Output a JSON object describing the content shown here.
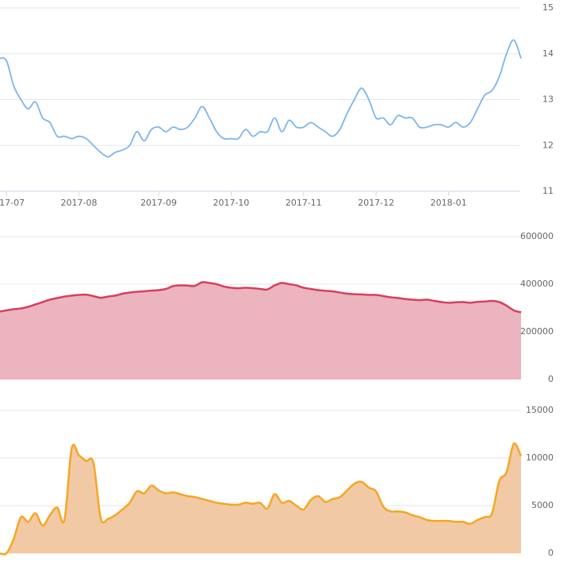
{
  "chart_data": [
    {
      "type": "line",
      "color": "#7cb5ec",
      "categories": [
        null,
        "2017-07",
        null,
        null,
        null,
        null,
        null,
        null,
        null,
        null,
        null,
        "2017-08",
        null,
        null,
        null,
        null,
        null,
        null,
        null,
        null,
        null,
        null,
        "2017-09",
        null,
        null,
        null,
        null,
        null,
        null,
        null,
        null,
        null,
        "2017-10",
        null,
        null,
        null,
        null,
        null,
        null,
        null,
        null,
        null,
        "2017-11",
        null,
        null,
        null,
        null,
        null,
        null,
        null,
        null,
        null,
        "2017-12",
        null,
        null,
        null,
        null,
        null,
        null,
        null,
        null,
        null,
        "2018-01",
        null,
        null,
        null,
        null,
        null,
        null,
        null,
        null,
        null,
        null
      ],
      "values": [
        13.9,
        13.85,
        13.3,
        13.0,
        12.8,
        12.95,
        12.6,
        12.5,
        12.2,
        12.2,
        12.15,
        12.2,
        12.15,
        12.0,
        11.85,
        11.75,
        11.85,
        11.9,
        12.0,
        12.3,
        12.1,
        12.35,
        12.4,
        12.3,
        12.4,
        12.35,
        12.4,
        12.6,
        12.85,
        12.6,
        12.3,
        12.15,
        12.15,
        12.15,
        12.35,
        12.2,
        12.3,
        12.3,
        12.6,
        12.3,
        12.55,
        12.4,
        12.4,
        12.5,
        12.4,
        12.3,
        12.2,
        12.35,
        12.7,
        13.0,
        13.25,
        13.0,
        12.6,
        12.6,
        12.45,
        12.65,
        12.6,
        12.6,
        12.4,
        12.4,
        12.45,
        12.45,
        12.4,
        12.5,
        12.4,
        12.5,
        12.8,
        13.1,
        13.2,
        13.5,
        14.0,
        14.3,
        13.9
      ],
      "ylim": [
        11,
        15
      ],
      "yticks": [
        11,
        12,
        13,
        14,
        15
      ],
      "grid": true
    },
    {
      "type": "area",
      "color": "#d6405e",
      "fill": "#ebb4bf",
      "values": [
        285000,
        290000,
        295000,
        298000,
        305000,
        315000,
        325000,
        335000,
        342000,
        348000,
        352000,
        355000,
        356000,
        350000,
        343000,
        348000,
        352000,
        360000,
        365000,
        368000,
        370000,
        373000,
        375000,
        380000,
        392000,
        395000,
        394000,
        393000,
        408000,
        405000,
        400000,
        390000,
        385000,
        383000,
        385000,
        383000,
        380000,
        378000,
        395000,
        405000,
        400000,
        395000,
        385000,
        380000,
        375000,
        372000,
        370000,
        365000,
        360000,
        358000,
        357000,
        355000,
        355000,
        350000,
        345000,
        342000,
        338000,
        335000,
        333000,
        335000,
        330000,
        325000,
        322000,
        324000,
        325000,
        322000,
        326000,
        327000,
        330000,
        325000,
        310000,
        290000,
        282000
      ],
      "ylim": [
        0,
        600000
      ],
      "yticks": [
        0,
        200000,
        400000,
        600000
      ],
      "grid": true
    },
    {
      "type": "area",
      "color": "#f5a623",
      "fill": "#f2c9a5",
      "values": [
        0,
        0,
        1500,
        3800,
        3300,
        4200,
        2900,
        4000,
        4800,
        3500,
        11000,
        10300,
        9700,
        9500,
        3700,
        3600,
        4000,
        4600,
        5300,
        6500,
        6300,
        7100,
        6600,
        6300,
        6400,
        6200,
        6000,
        5900,
        5700,
        5500,
        5300,
        5200,
        5100,
        5100,
        5300,
        5200,
        5300,
        4700,
        6200,
        5300,
        5500,
        5000,
        4600,
        5600,
        6000,
        5400,
        5700,
        5900,
        6600,
        7300,
        7500,
        6900,
        6500,
        4900,
        4400,
        4400,
        4300,
        4000,
        3800,
        3500,
        3400,
        3400,
        3400,
        3300,
        3300,
        3100,
        3500,
        3800,
        4200,
        7600,
        8500,
        11500,
        10200
      ],
      "ylim": [
        0,
        15000
      ],
      "yticks": [
        0,
        5000,
        10000,
        15000
      ],
      "grid": true
    }
  ]
}
